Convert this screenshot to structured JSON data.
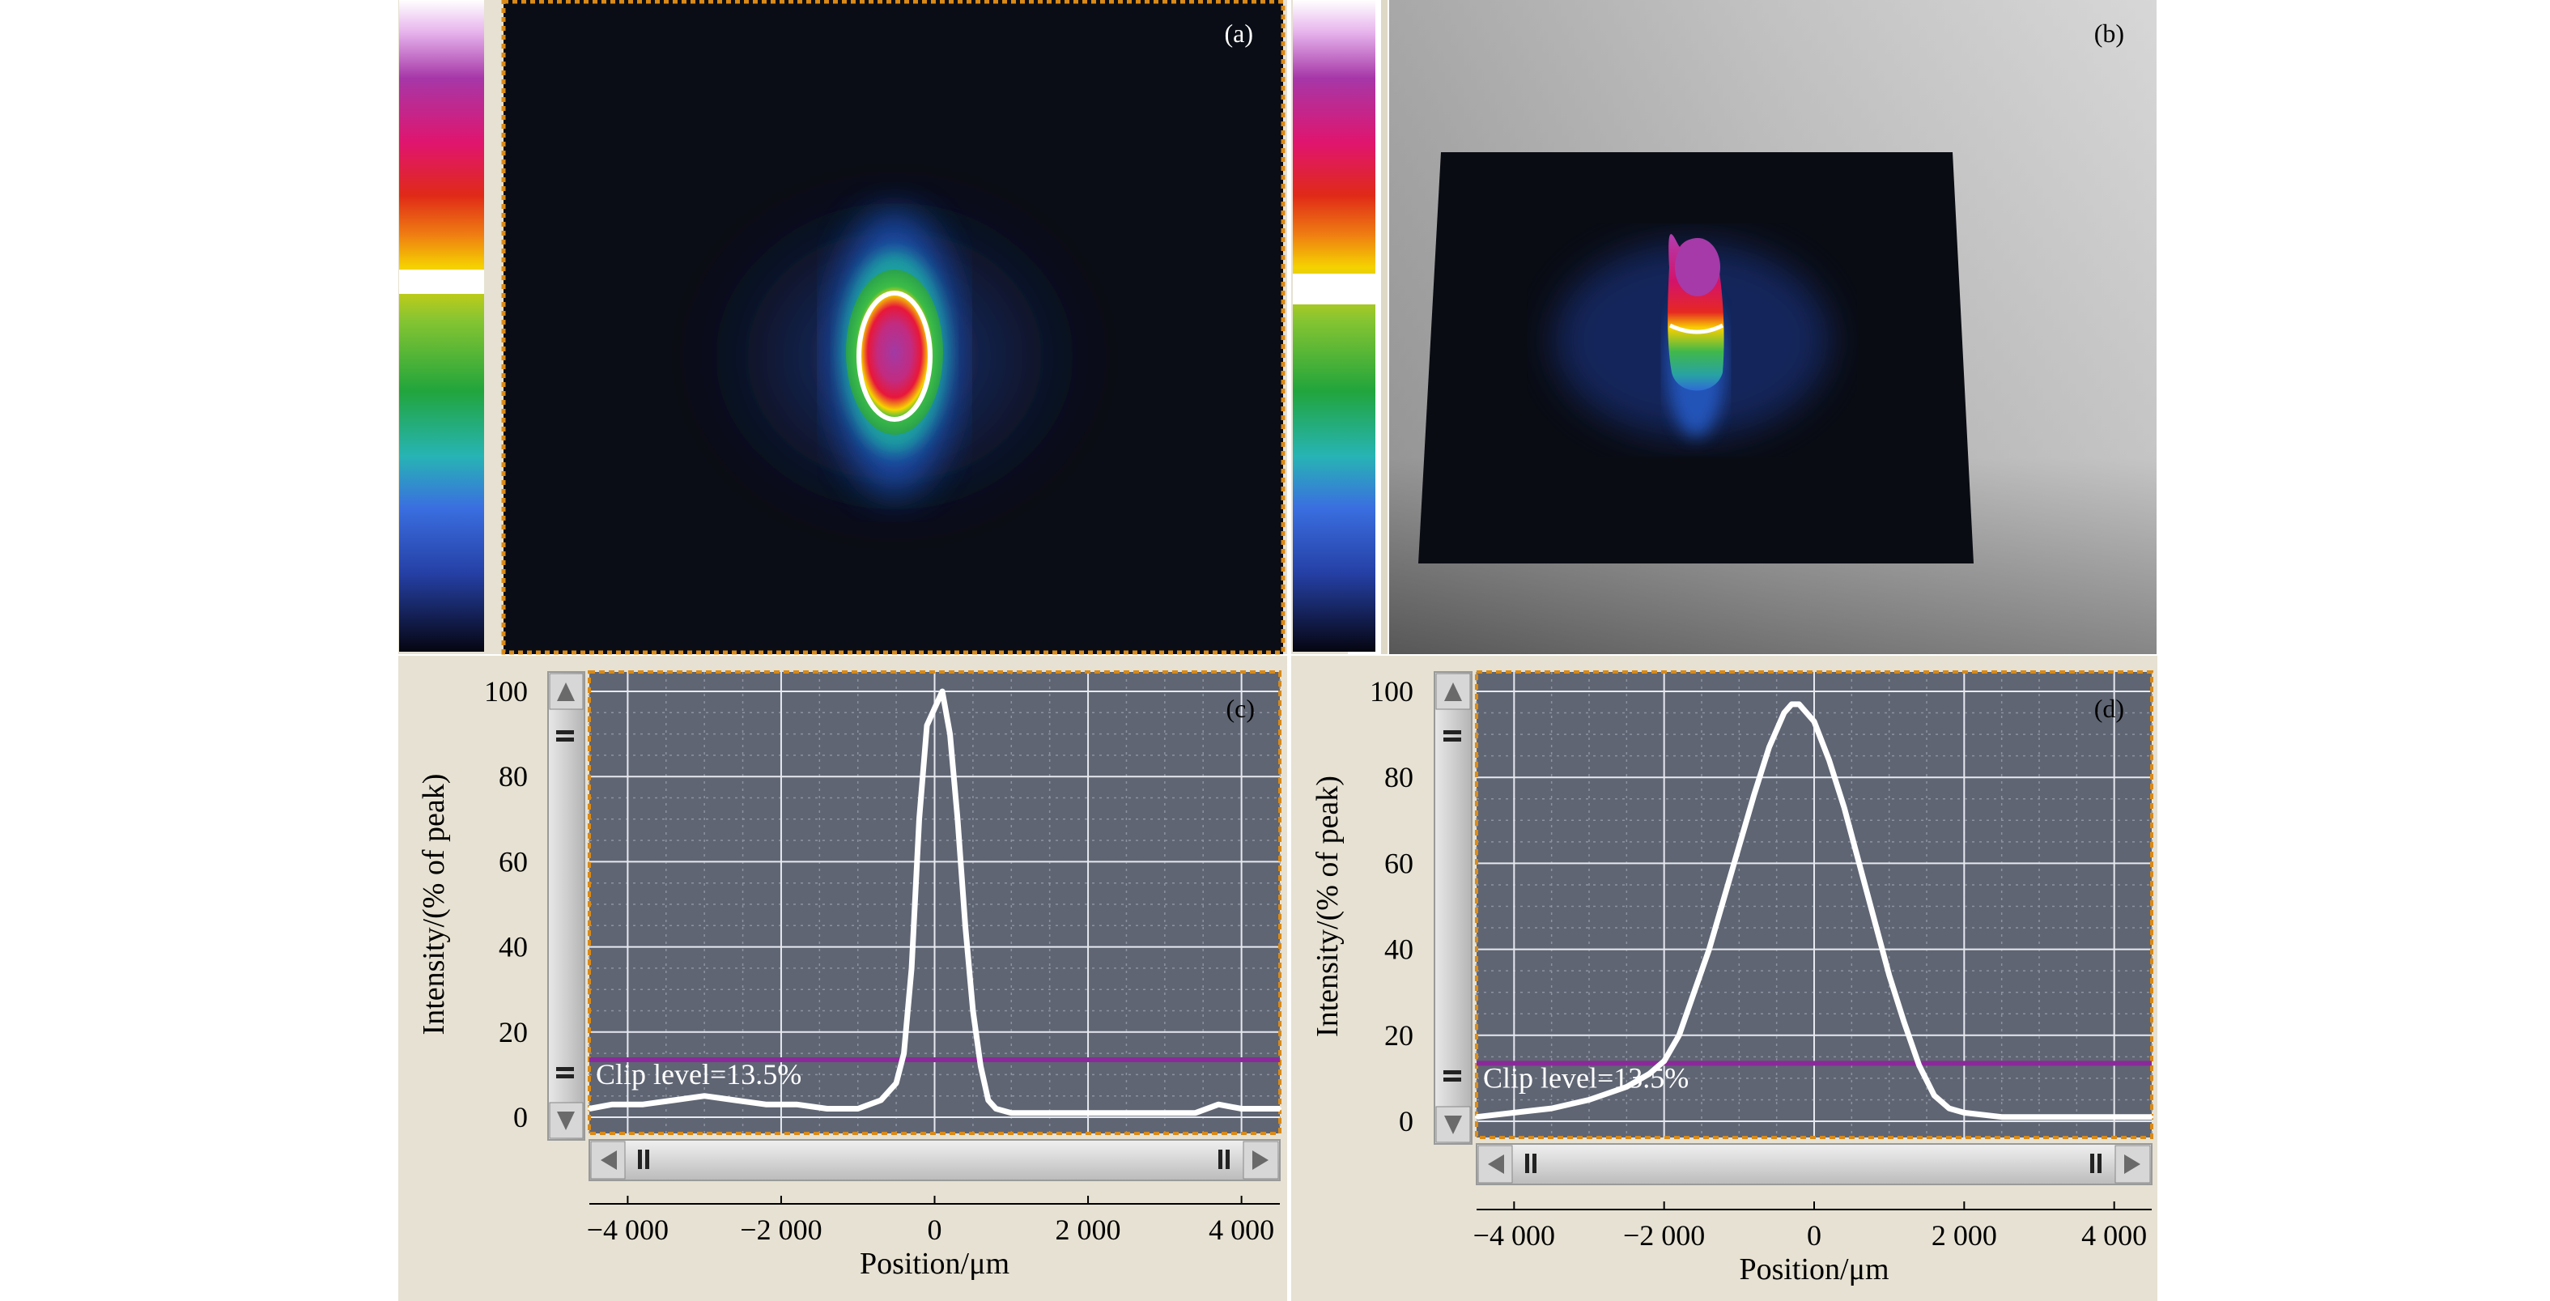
{
  "panels": {
    "a": {
      "tag": "(a)"
    },
    "b": {
      "tag": "(b)"
    }
  },
  "chart_data": [
    {
      "type": "line",
      "panel": "(c)",
      "xlabel": "Position/μm",
      "ylabel": "Intensity/(% of peak)",
      "xlim": [
        -4500,
        4500
      ],
      "ylim": [
        0,
        100
      ],
      "xticks": [
        -4000,
        -2000,
        0,
        2000,
        4000
      ],
      "xtick_labels": [
        "−4 000",
        "−2 000",
        "0",
        "2 000",
        "4 000"
      ],
      "yticks": [
        0,
        20,
        40,
        60,
        80,
        100
      ],
      "ytick_labels": [
        "0",
        "20",
        "40",
        "60",
        "80",
        "100"
      ],
      "grid": true,
      "clip_level": 13.5,
      "clip_label": "Clip level=13.5%",
      "series": [
        {
          "x": [
            -4500,
            -4200,
            -3800,
            -3400,
            -3000,
            -2600,
            -2200,
            -1800,
            -1400,
            -1000,
            -700,
            -500,
            -400,
            -300,
            -200,
            -100,
            0,
            100,
            200,
            300,
            400,
            500,
            600,
            700,
            800,
            1000,
            1400,
            1800,
            2200,
            2600,
            3000,
            3400,
            3700,
            4000,
            4300,
            4500
          ],
          "y": [
            2,
            3,
            3,
            4,
            5,
            4,
            3,
            3,
            2,
            2,
            4,
            8,
            15,
            35,
            70,
            92,
            96,
            100,
            90,
            70,
            45,
            25,
            12,
            4,
            2,
            1,
            1,
            1,
            1,
            1,
            1,
            1,
            3,
            2,
            2,
            2
          ]
        }
      ]
    },
    {
      "type": "line",
      "panel": "(d)",
      "xlabel": "Position/μm",
      "ylabel": "Intensity/(% of peak)",
      "xlim": [
        -4500,
        4500
      ],
      "ylim": [
        0,
        100
      ],
      "xticks": [
        -4000,
        -2000,
        0,
        2000,
        4000
      ],
      "xtick_labels": [
        "−4 000",
        "−2 000",
        "0",
        "2 000",
        "4 000"
      ],
      "yticks": [
        0,
        20,
        40,
        60,
        80,
        100
      ],
      "ytick_labels": [
        "0",
        "20",
        "40",
        "60",
        "80",
        "100"
      ],
      "grid": true,
      "clip_level": 13.5,
      "clip_label": "Clip level=13.5%",
      "series": [
        {
          "x": [
            -4500,
            -4000,
            -3500,
            -3000,
            -2500,
            -2200,
            -2000,
            -1800,
            -1600,
            -1400,
            -1200,
            -1000,
            -800,
            -600,
            -400,
            -300,
            -200,
            0,
            200,
            400,
            600,
            800,
            1000,
            1200,
            1400,
            1600,
            1800,
            2000,
            2500,
            3000,
            3500,
            4000,
            4500
          ],
          "y": [
            1,
            2,
            3,
            5,
            8,
            11,
            14,
            20,
            30,
            40,
            52,
            64,
            76,
            87,
            95,
            97,
            97,
            93,
            84,
            73,
            60,
            47,
            34,
            23,
            13,
            6,
            3,
            2,
            1,
            1,
            1,
            1,
            1
          ]
        }
      ]
    }
  ]
}
